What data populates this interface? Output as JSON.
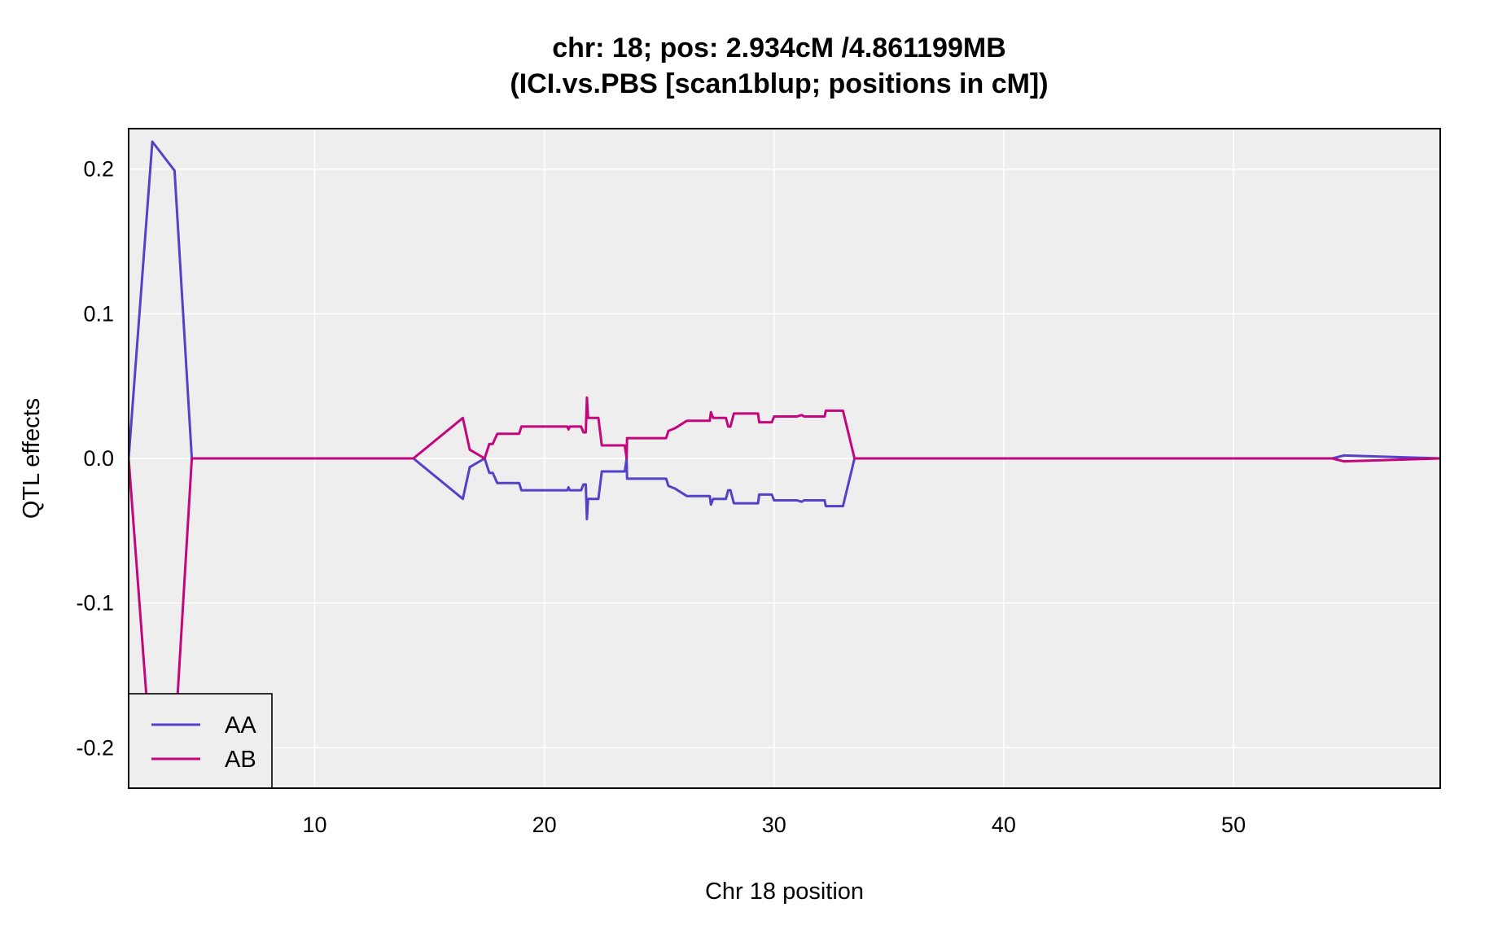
{
  "chart_data": {
    "type": "line",
    "title": "chr: 18; pos: 2.934cM /4.861199MB",
    "subtitle": "(ICI.vs.PBS [scan1blup; positions in cM])",
    "xlabel": "Chr 18 position",
    "ylabel": "QTL effects",
    "xlim": [
      1.9,
      59.0
    ],
    "ylim": [
      -0.228,
      0.228
    ],
    "xticks": [
      10,
      20,
      30,
      40,
      50
    ],
    "yticks": [
      -0.2,
      -0.1,
      0.0,
      0.1,
      0.2
    ],
    "ytick_labels": [
      "-0.2",
      "-0.1",
      "0.0",
      "0.1",
      "0.2"
    ],
    "grid": true,
    "legend_position": "bottom-left",
    "background": "#eeeeee",
    "series": [
      {
        "name": "AA",
        "color": "#5342c8",
        "x": [
          1.9,
          2.93,
          3.9,
          4.65,
          8,
          14.3,
          16.45,
          16.75,
          17.4,
          17.6,
          17.75,
          17.95,
          18.1,
          18.9,
          19.0,
          20.8,
          21.0,
          21.05,
          21.1,
          21.15,
          21.6,
          21.7,
          21.8,
          21.85,
          21.9,
          22.0,
          22.35,
          22.5,
          23.5,
          23.58,
          23.6,
          23.65,
          23.7,
          25.3,
          25.4,
          25.7,
          26.2,
          27.2,
          27.25,
          27.35,
          27.5,
          27.9,
          28.0,
          28.1,
          28.25,
          28.3,
          29.3,
          29.35,
          29.5,
          29.9,
          30.0,
          31.0,
          31.2,
          31.3,
          32.2,
          32.25,
          33.0,
          33.5,
          40,
          54.3,
          54.8,
          59.0
        ],
        "y": [
          0.0,
          0.219,
          0.199,
          0.0,
          0.0,
          0.0,
          -0.028,
          -0.006,
          0.0,
          -0.01,
          -0.01,
          -0.017,
          -0.017,
          -0.017,
          -0.022,
          -0.022,
          -0.022,
          -0.02,
          -0.022,
          -0.022,
          -0.022,
          -0.018,
          -0.018,
          -0.042,
          -0.028,
          -0.028,
          -0.028,
          -0.009,
          -0.009,
          0.0,
          -0.014,
          -0.014,
          -0.014,
          -0.014,
          -0.019,
          -0.021,
          -0.026,
          -0.026,
          -0.032,
          -0.028,
          -0.028,
          -0.028,
          -0.022,
          -0.022,
          -0.031,
          -0.031,
          -0.031,
          -0.025,
          -0.025,
          -0.025,
          -0.029,
          -0.029,
          -0.03,
          -0.029,
          -0.029,
          -0.033,
          -0.033,
          0.0,
          0.0,
          0.0,
          0.002,
          0.0
        ]
      },
      {
        "name": "AB",
        "color": "#c4067d",
        "x": [
          1.9,
          2.93,
          3.9,
          4.65,
          8,
          14.3,
          16.45,
          16.75,
          17.4,
          17.6,
          17.75,
          17.95,
          18.1,
          18.9,
          19.0,
          20.8,
          21.0,
          21.05,
          21.1,
          21.15,
          21.6,
          21.7,
          21.8,
          21.85,
          21.9,
          22.0,
          22.35,
          22.5,
          23.5,
          23.58,
          23.6,
          23.65,
          23.7,
          25.3,
          25.4,
          25.7,
          26.2,
          27.2,
          27.25,
          27.35,
          27.5,
          27.9,
          28.0,
          28.1,
          28.25,
          28.3,
          29.3,
          29.35,
          29.5,
          29.9,
          30.0,
          31.0,
          31.2,
          31.3,
          32.2,
          32.25,
          33.0,
          33.5,
          40,
          54.3,
          54.8,
          59.0
        ],
        "y": [
          0.0,
          -0.219,
          -0.199,
          0.0,
          0.0,
          0.0,
          0.028,
          0.006,
          0.0,
          0.01,
          0.01,
          0.017,
          0.017,
          0.017,
          0.022,
          0.022,
          0.022,
          0.02,
          0.022,
          0.022,
          0.022,
          0.018,
          0.018,
          0.042,
          0.028,
          0.028,
          0.028,
          0.009,
          0.009,
          0.0,
          0.014,
          0.014,
          0.014,
          0.014,
          0.019,
          0.021,
          0.026,
          0.026,
          0.032,
          0.028,
          0.028,
          0.028,
          0.022,
          0.022,
          0.031,
          0.031,
          0.031,
          0.025,
          0.025,
          0.025,
          0.029,
          0.029,
          0.03,
          0.029,
          0.029,
          0.033,
          0.033,
          0.0,
          0.0,
          0.0,
          -0.002,
          0.0
        ]
      }
    ]
  }
}
